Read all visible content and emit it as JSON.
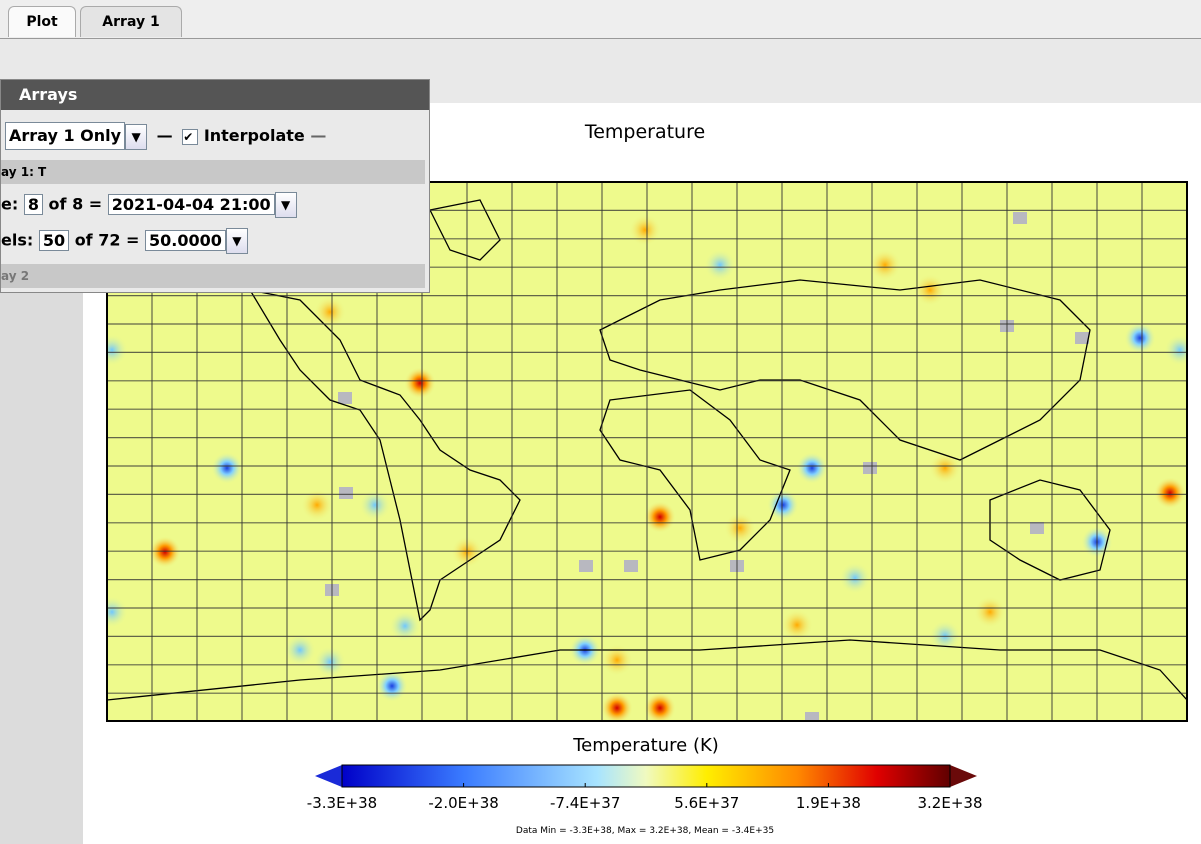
{
  "tabs": [
    "Plot",
    "Array 1"
  ],
  "arrays_panel": {
    "title": "Arrays",
    "mode": "Array 1 Only",
    "interpolate": "Interpolate",
    "array1_header": "ay 1: T",
    "time_row": {
      "label": "e:",
      "index": "8",
      "of": "of 8 =",
      "value": "2021-04-04 21:00"
    },
    "levels_row": {
      "label": "els:",
      "index": "50",
      "of": "of 72 =",
      "value": "50.0000"
    },
    "array2_header": "ay 2"
  },
  "plot": {
    "title": "Temperature",
    "colorbar_title": "Temperature (K)",
    "colorbar_labels": [
      "-3.3E+38",
      "-2.0E+38",
      "-7.4E+37",
      "5.6E+37",
      "1.9E+38",
      "3.2E+38"
    ],
    "footer": "Data Min = -3.3E+38, Max = 3.2E+38, Mean = -3.4E+35"
  }
}
